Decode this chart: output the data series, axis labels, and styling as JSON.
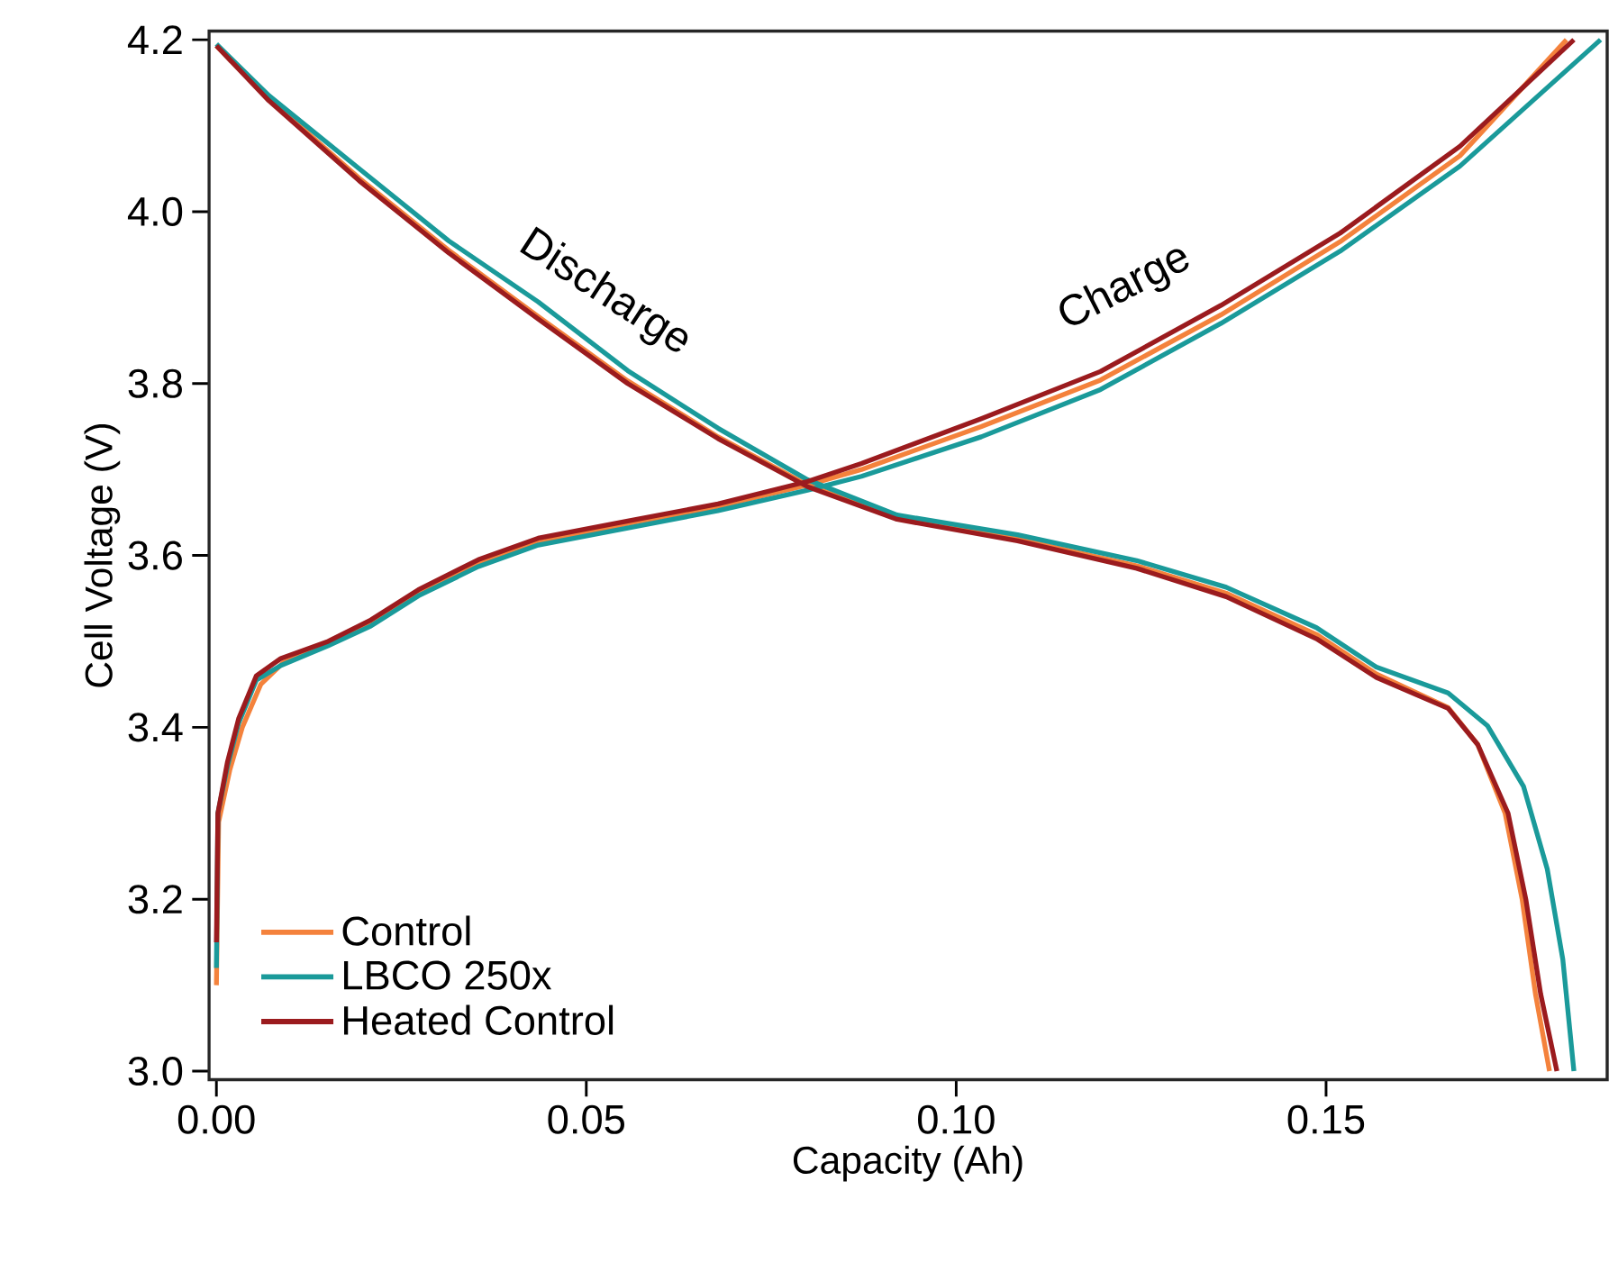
{
  "chart_data": {
    "type": "line",
    "xlabel": "Capacity (Ah)",
    "ylabel": "Cell Voltage (V)",
    "xlim": [
      -0.001,
      0.188
    ],
    "ylim": [
      2.99,
      4.21
    ],
    "xticks": [
      {
        "value": 0,
        "label": "0.00"
      },
      0.05,
      {
        "value": 0.1,
        "label": "0.10"
      },
      0.15
    ],
    "yticks": [
      {
        "value": 3,
        "label": "3.0"
      },
      3.2,
      3.4,
      3.6,
      3.8,
      {
        "value": 4,
        "label": "4.0"
      },
      4.2
    ],
    "legend": "bottom left",
    "grid": false,
    "marker": "none",
    "line_style": "solid",
    "annotations": [
      "Discharge",
      "Charge"
    ],
    "series": [
      {
        "name": "Control",
        "color": "#f4823c",
        "x": [
          0,
          0.0003,
          0.0018,
          0.0035,
          0.006,
          0.009,
          0.0151,
          0.0209,
          0.0273,
          0.0354,
          0.0435,
          0.0556,
          0.0678,
          0.0799,
          0.0872,
          0.1034,
          0.1195,
          0.1358,
          0.1519,
          0.1681,
          0.1825,
          null,
          0,
          0.0071,
          0.0193,
          0.0314,
          0.0435,
          0.0556,
          0.0678,
          0.0799,
          0.092,
          0.1083,
          0.1244,
          0.1365,
          0.1487,
          0.1568,
          0.1665,
          0.1705,
          0.1742,
          0.1765,
          0.1783,
          0.1802
        ],
        "values": [
          3.1,
          3.29,
          3.35,
          3.4,
          3.45,
          3.475,
          3.497,
          3.52,
          3.555,
          3.59,
          3.615,
          3.637,
          3.657,
          3.682,
          3.7,
          3.75,
          3.804,
          3.88,
          3.965,
          4.065,
          4.2,
          null,
          4.193,
          4.131,
          4.039,
          3.955,
          3.878,
          3.803,
          3.738,
          3.682,
          3.643,
          3.619,
          3.588,
          3.556,
          3.508,
          3.462,
          3.423,
          3.38,
          3.3,
          3.2,
          3.09,
          3.0
        ]
      },
      {
        "name": "LBCO 250x",
        "color": "#1a9a9a",
        "x": [
          0,
          0.0002,
          0.0015,
          0.003,
          0.0054,
          0.0087,
          0.0151,
          0.0209,
          0.0273,
          0.0354,
          0.0435,
          0.0556,
          0.0678,
          0.0799,
          0.0872,
          0.1034,
          0.1195,
          0.1358,
          0.1519,
          0.1681,
          0.1871,
          null,
          0,
          0.0071,
          0.0193,
          0.0314,
          0.0435,
          0.0556,
          0.0678,
          0.0799,
          0.092,
          0.1083,
          0.1244,
          0.1365,
          0.1487,
          0.1568,
          0.1665,
          0.1718,
          0.1767,
          0.1799,
          0.182,
          0.1835
        ],
        "values": [
          3.12,
          3.3,
          3.355,
          3.405,
          3.455,
          3.472,
          3.495,
          3.518,
          3.553,
          3.587,
          3.612,
          3.632,
          3.652,
          3.676,
          3.692,
          3.738,
          3.793,
          3.87,
          3.954,
          4.053,
          4.2,
          null,
          4.195,
          4.135,
          4.05,
          3.966,
          3.895,
          3.815,
          3.748,
          3.688,
          3.647,
          3.624,
          3.594,
          3.563,
          3.516,
          3.47,
          3.44,
          3.402,
          3.331,
          3.235,
          3.13,
          3.0
        ]
      },
      {
        "name": "Heated Control",
        "color": "#9b1b1e",
        "x": [
          0,
          0.0002,
          0.0015,
          0.003,
          0.0054,
          0.0087,
          0.0151,
          0.0209,
          0.0273,
          0.0354,
          0.0435,
          0.0556,
          0.0678,
          0.0799,
          0.0872,
          0.1034,
          0.1195,
          0.1358,
          0.1519,
          0.1681,
          0.1835,
          null,
          0,
          0.0071,
          0.0193,
          0.0314,
          0.0435,
          0.0556,
          0.0678,
          0.0799,
          0.092,
          0.1083,
          0.1244,
          0.1365,
          0.1487,
          0.1568,
          0.1665,
          0.1705,
          0.1746,
          0.177,
          0.179,
          0.1812
        ],
        "values": [
          3.15,
          3.3,
          3.36,
          3.41,
          3.46,
          3.48,
          3.5,
          3.525,
          3.56,
          3.595,
          3.62,
          3.64,
          3.66,
          3.686,
          3.707,
          3.759,
          3.814,
          3.891,
          3.975,
          4.076,
          4.2,
          null,
          4.193,
          4.129,
          4.036,
          3.952,
          3.875,
          3.8,
          3.736,
          3.68,
          3.642,
          3.617,
          3.585,
          3.552,
          3.503,
          3.458,
          3.422,
          3.38,
          3.3,
          3.2,
          3.09,
          3.0
        ]
      }
    ]
  }
}
